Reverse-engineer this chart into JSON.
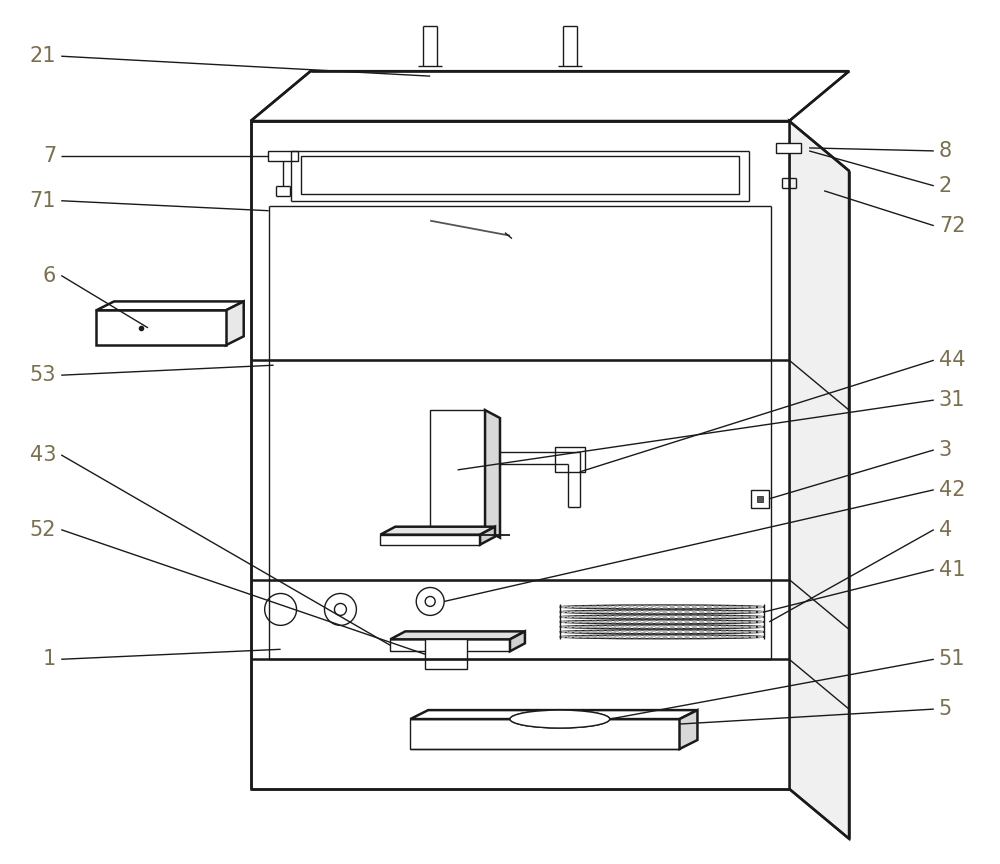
{
  "bg_color": "#ffffff",
  "line_color": "#1a1a1a",
  "label_color": "#7a7050",
  "fig_width": 10.0,
  "fig_height": 8.64,
  "lw_main": 1.8,
  "lw_thin": 1.0,
  "lw_med": 1.3
}
